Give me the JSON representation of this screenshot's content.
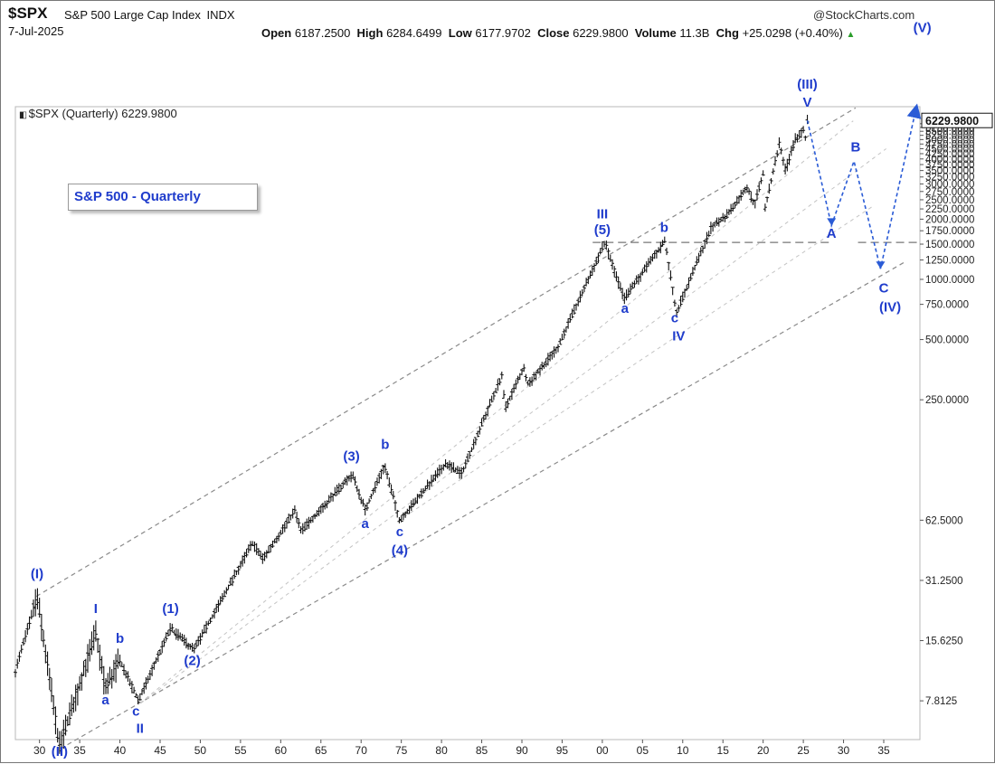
{
  "header": {
    "symbol": "$SPX",
    "name": "S&P 500 Large Cap Index",
    "exchange": "INDX",
    "date": "7-Jul-2025",
    "open_label": "Open",
    "open": "6187.2500",
    "high_label": "High",
    "high": "6284.6499",
    "low_label": "Low",
    "low": "6177.9702",
    "close_label": "Close",
    "close": "6229.9800",
    "volume_label": "Volume",
    "volume": "11.3B",
    "chg_label": "Chg",
    "chg": "+25.0298 (+0.40%)",
    "brand": "@StockCharts.com"
  },
  "inner_label": "$SPX (Quarterly) 6229.9800",
  "legend": "S&P 500 - Quarterly",
  "colors": {
    "wave_label": "#1f3ccc",
    "projection": "#2a5bd6",
    "price_bar": "#111111",
    "channel": "#8a8a8a",
    "last_price_box": "#ffffff"
  },
  "chart_data": {
    "type": "ohlc-bar",
    "title": "$SPX (Quarterly) 6229.9800",
    "y_scale": "log",
    "y_ticks": [
      7.8125,
      15.625,
      31.25,
      62.5,
      250,
      500,
      750,
      1000,
      1250,
      1500,
      1750,
      2000,
      2250,
      2500,
      2750,
      3000,
      3250,
      3500,
      3750,
      4000,
      4250,
      4500,
      4750,
      5000,
      5250,
      5500,
      5750,
      6000
    ],
    "y_tick_labels": [
      "7.8125",
      "15.6250",
      "31.2500",
      "62.5000",
      "250.0000",
      "500.0000",
      "750.0000",
      "1000.0000",
      "1250.0000",
      "1500.0000",
      "1750.0000",
      "2000.0000",
      "2250.0000",
      "2500.0000",
      "2750.0000",
      "3000.0000",
      "3250.0000",
      "3500.0000",
      "3750.0000",
      "4000.0000",
      "4250.0000",
      "4500.0000",
      "4750.0000",
      "5000.0000",
      "5250.0000",
      "5500.0000",
      "5750.0000",
      "6000.0000"
    ],
    "last_price_label": "6229.9800",
    "last_price": 6229.98,
    "x_ticks": [
      1930,
      1935,
      1940,
      1945,
      1950,
      1955,
      1960,
      1965,
      1970,
      1975,
      1980,
      1985,
      1990,
      1995,
      2000,
      2005,
      2010,
      2015,
      2020,
      2025,
      2030,
      2035
    ],
    "x_tick_labels": [
      "30",
      "35",
      "40",
      "45",
      "50",
      "55",
      "60",
      "65",
      "70",
      "75",
      "80",
      "85",
      "90",
      "95",
      "00",
      "05",
      "10",
      "15",
      "20",
      "25",
      "30",
      "35"
    ],
    "x_range": [
      1927,
      2039.5
    ],
    "y_range": [
      5.0,
      7300
    ],
    "price_path": [
      [
        1927.0,
        11
      ],
      [
        1929.7,
        26
      ],
      [
        1932.5,
        4.6
      ],
      [
        1937.0,
        17
      ],
      [
        1938.2,
        9
      ],
      [
        1940.0,
        12.5
      ],
      [
        1942.3,
        7.8
      ],
      [
        1946.3,
        18
      ],
      [
        1949.2,
        14
      ],
      [
        1956.5,
        48
      ],
      [
        1957.8,
        40
      ],
      [
        1961.8,
        70
      ],
      [
        1962.5,
        55
      ],
      [
        1968.9,
        106
      ],
      [
        1970.5,
        70
      ],
      [
        1972.9,
        118
      ],
      [
        1974.8,
        62
      ],
      [
        1980.5,
        120
      ],
      [
        1982.5,
        107
      ],
      [
        1987.5,
        330
      ],
      [
        1987.9,
        225
      ],
      [
        1990.2,
        360
      ],
      [
        1990.8,
        300
      ],
      [
        1994.5,
        460
      ],
      [
        2000.3,
        1530
      ],
      [
        2002.7,
        800
      ],
      [
        2007.8,
        1560
      ],
      [
        2009.2,
        680
      ],
      [
        2013.5,
        1800
      ],
      [
        2015.5,
        2100
      ],
      [
        2018.0,
        2900
      ],
      [
        2018.9,
        2350
      ],
      [
        2020.0,
        3380
      ],
      [
        2020.2,
        2200
      ],
      [
        2022.0,
        4800
      ],
      [
        2022.8,
        3500
      ],
      [
        2024.0,
        5000
      ],
      [
        2025.0,
        5600
      ],
      [
        2025.2,
        4900
      ],
      [
        2025.5,
        6230
      ]
    ],
    "channels": [
      {
        "style": "dashed-upper",
        "from": [
          1929.6,
          26
        ],
        "to": [
          2031.5,
          7200
        ]
      },
      {
        "style": "dashed-lower",
        "from": [
          1932.6,
          4.5
        ],
        "to": [
          2037.6,
          1220
        ]
      },
      {
        "style": "dashed-light",
        "from": [
          1942.5,
          7.6
        ],
        "to": [
          2031.2,
          6200
        ]
      },
      {
        "style": "dashed-light",
        "from": [
          1942.6,
          7.6
        ],
        "to": [
          2035.3,
          4500
        ]
      },
      {
        "style": "dashed-light",
        "from": [
          1974.6,
          62
        ],
        "to": [
          2033.5,
          2300
        ]
      },
      {
        "style": "dashed-resistance",
        "from": [
          1998.8,
          1530
        ],
        "to": [
          2028.7,
          1530
        ]
      },
      {
        "style": "dashed-resistance",
        "from": [
          2031.8,
          1530
        ],
        "to": [
          2039.5,
          1530
        ]
      }
    ],
    "projection": [
      [
        2025.5,
        6230
      ],
      [
        2028.5,
        1860
      ],
      [
        2031.3,
        3900
      ],
      [
        2034.6,
        1130
      ],
      [
        2039.0,
        7100
      ]
    ],
    "wave_labels": [
      {
        "text": "(I)",
        "x": 1929.7,
        "y": 32
      },
      {
        "text": "(II)",
        "x": 1932.5,
        "y": 4.15
      },
      {
        "text": "I",
        "x": 1937.0,
        "y": 21.5
      },
      {
        "text": "a",
        "x": 1938.2,
        "y": 7.5
      },
      {
        "text": "b",
        "x": 1940.0,
        "y": 15.2
      },
      {
        "text": "c",
        "x": 1942.0,
        "y": 6.6
      },
      {
        "text": "II",
        "x": 1942.5,
        "y": 5.4
      },
      {
        "text": "(1)",
        "x": 1946.3,
        "y": 21.5
      },
      {
        "text": "(2)",
        "x": 1949.0,
        "y": 11.8
      },
      {
        "text": "(3)",
        "x": 1968.8,
        "y": 124
      },
      {
        "text": "b",
        "x": 1973.0,
        "y": 142
      },
      {
        "text": "a",
        "x": 1970.5,
        "y": 57
      },
      {
        "text": "c",
        "x": 1974.8,
        "y": 52
      },
      {
        "text": "(4)",
        "x": 1974.8,
        "y": 42
      },
      {
        "text": "III",
        "x": 2000.0,
        "y": 2020
      },
      {
        "text": "(5)",
        "x": 2000.0,
        "y": 1680
      },
      {
        "text": "b",
        "x": 2007.7,
        "y": 1730
      },
      {
        "text": "a",
        "x": 2002.8,
        "y": 680
      },
      {
        "text": "c",
        "x": 2009.0,
        "y": 610
      },
      {
        "text": "IV",
        "x": 2009.5,
        "y": 495
      },
      {
        "text": "(III)",
        "x": 2025.5,
        "y": 9000
      },
      {
        "text": "V",
        "x": 2025.5,
        "y": 7300
      },
      {
        "text": "A",
        "x": 2028.5,
        "y": 1610
      },
      {
        "text": "B",
        "x": 2031.5,
        "y": 4350
      },
      {
        "text": "C",
        "x": 2035.0,
        "y": 860
      },
      {
        "text": "(IV)",
        "x": 2035.8,
        "y": 690
      },
      {
        "text": "(V)",
        "x": 2039.8,
        "y": 17200
      }
    ]
  }
}
